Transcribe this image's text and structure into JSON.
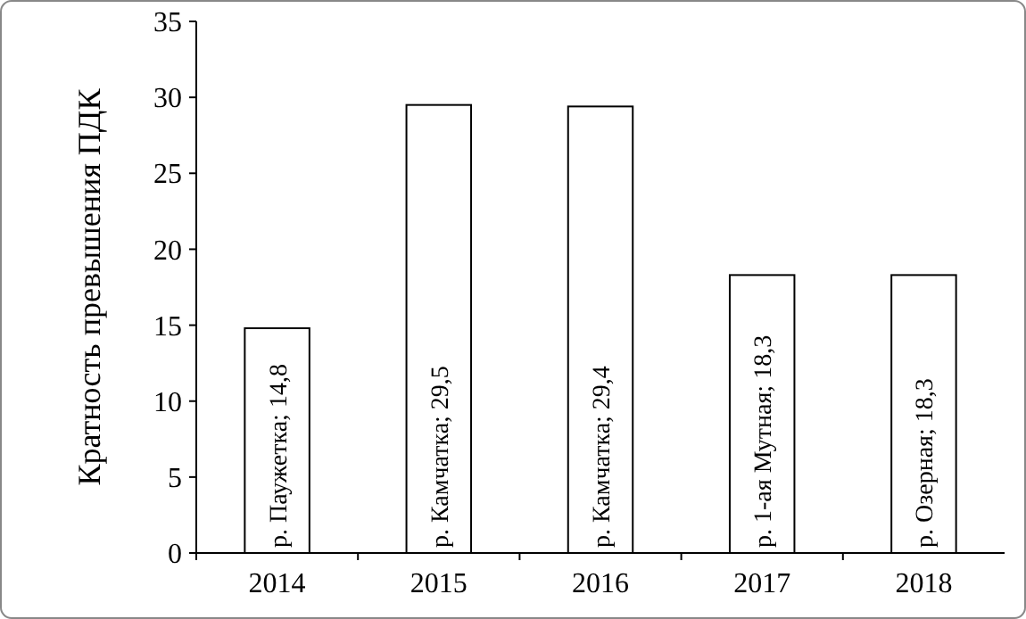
{
  "chart_data": {
    "type": "bar",
    "ylabel": "Кратность  превышения ПДК",
    "categories": [
      "2014",
      "2015",
      "2016",
      "2017",
      "2018"
    ],
    "values": [
      14.8,
      29.5,
      29.4,
      18.3,
      18.3
    ],
    "value_labels": [
      "р. Паужетка; 14,8",
      "р. Камчатка; 29,5",
      "р. Камчатка; 29,4",
      "р. 1-ая Мутная; 18,3",
      "р. Озерная; 18,3"
    ],
    "color": "#ffffff",
    "ylim": [
      0,
      35
    ],
    "yticks": [
      0,
      5,
      10,
      15,
      20,
      25,
      30,
      35
    ],
    "grid": false
  }
}
